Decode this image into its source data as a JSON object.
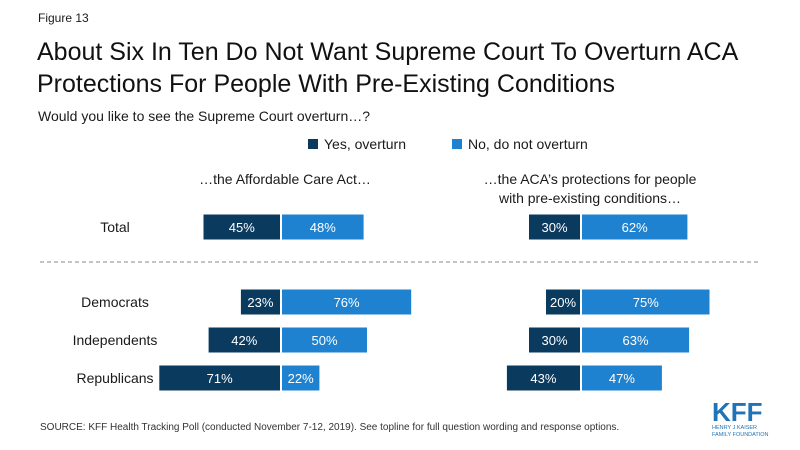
{
  "figure_label": "Figure 13",
  "title_line1": "About Six In Ten Do Not Want Supreme Court To Overturn ACA",
  "title_line2": "Protections For People With Pre-Existing Conditions",
  "subtitle": "Would you like to see the Supreme Court overturn…?",
  "legend": [
    {
      "label": "Yes, overturn",
      "color": "#0b3a5f"
    },
    {
      "label": "No, do not overturn",
      "color": "#1f82d0"
    }
  ],
  "source": "SOURCE: KFF Health Tracking Poll (conducted November 7-12, 2019). See topline for full question wording and response options.",
  "logo": {
    "word": "KFF",
    "sub1": "HENRY J KAISER",
    "sub2": "FAMILY FOUNDATION"
  },
  "chart_data": {
    "type": "bar",
    "orientation": "horizontal-diverging",
    "unit": "%",
    "categories": [
      "Total",
      "Democrats",
      "Independents",
      "Republicans"
    ],
    "panels": [
      {
        "header_lines": [
          "…the Affordable Care Act…"
        ],
        "series": [
          {
            "name": "Yes, overturn",
            "values": [
              45,
              23,
              42,
              71
            ]
          },
          {
            "name": "No, do not overturn",
            "values": [
              48,
              76,
              50,
              22
            ]
          }
        ]
      },
      {
        "header_lines": [
          "…the ACA’s protections for people",
          "with pre-existing conditions…"
        ],
        "series": [
          {
            "name": "Yes, overturn",
            "values": [
              30,
              20,
              30,
              43
            ]
          },
          {
            "name": "No, do not overturn",
            "values": [
              62,
              75,
              63,
              47
            ]
          }
        ]
      }
    ],
    "colors": {
      "yes": "#0b3a5f",
      "no": "#1f82d0",
      "divider": "#888888"
    }
  }
}
